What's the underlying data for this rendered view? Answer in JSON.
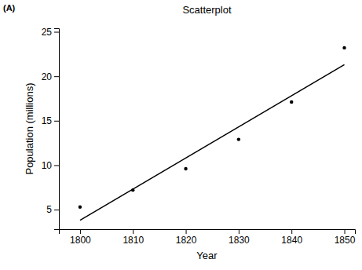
{
  "chart_data": {
    "type": "scatter",
    "title": "Scatterplot",
    "annotations": [
      "(A)"
    ],
    "x_label": "Year",
    "y_label": "Population (millions)",
    "series": [
      {
        "type": "scatter",
        "marker": "circle",
        "color": "#000000",
        "x": [
          1800,
          1810,
          1820,
          1830,
          1840,
          1850
        ],
        "values": [
          5.3,
          7.2,
          9.6,
          12.9,
          17.1,
          23.2
        ]
      },
      {
        "type": "line",
        "line_style": "solid",
        "color": "#000000",
        "x": [
          1800,
          1850
        ],
        "values": [
          3.8,
          21.3
        ]
      }
    ],
    "xlim": [
      1796,
      1852
    ],
    "ylim": [
      2.8,
      25.4
    ],
    "xticks": [
      1800,
      1810,
      1820,
      1830,
      1840,
      1850
    ],
    "yticks": [
      5,
      10,
      15,
      20,
      25
    ],
    "grid": false
  }
}
